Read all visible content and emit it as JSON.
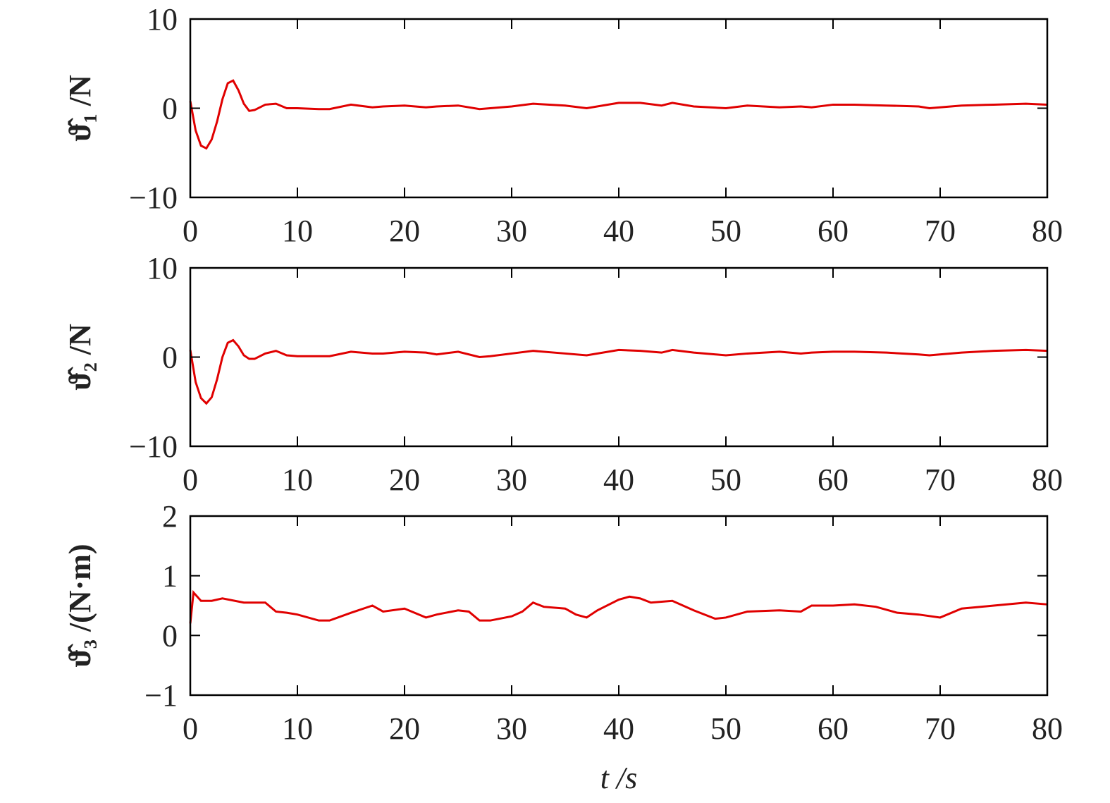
{
  "chart_data": [
    {
      "type": "line",
      "ylabel": "ϑ̂₁ /N",
      "x": [
        0,
        0.5,
        1,
        1.5,
        2,
        2.5,
        3,
        3.5,
        4,
        4.5,
        5,
        5.5,
        6,
        7,
        8,
        9,
        10,
        12,
        13,
        15,
        17,
        18,
        20,
        22,
        23,
        25,
        27,
        28,
        30,
        32,
        35,
        37,
        40,
        42,
        44,
        45,
        47,
        50,
        52,
        55,
        57,
        58,
        60,
        62,
        65,
        68,
        69,
        72,
        75,
        78,
        80
      ],
      "series": [
        {
          "color": "#e00000",
          "values": [
            0.8,
            -2.5,
            -4.2,
            -4.5,
            -3.5,
            -1.5,
            1,
            2.8,
            3.1,
            2,
            0.5,
            -0.3,
            -0.2,
            0.4,
            0.5,
            0,
            0,
            -0.1,
            -0.1,
            0.4,
            0.1,
            0.2,
            0.3,
            0.1,
            0.2,
            0.3,
            -0.1,
            0,
            0.2,
            0.5,
            0.3,
            0,
            0.6,
            0.6,
            0.3,
            0.6,
            0.2,
            0,
            0.3,
            0.1,
            0.2,
            0.1,
            0.4,
            0.4,
            0.3,
            0.2,
            0,
            0.3,
            0.4,
            0.5,
            0.4
          ]
        }
      ],
      "xlim": [
        0,
        80
      ],
      "xticks": [
        0,
        10,
        20,
        30,
        40,
        50,
        60,
        70,
        80
      ],
      "ylim": [
        -10,
        10
      ],
      "yticks": [
        {
          "value": -10,
          "label": "−10"
        },
        0,
        10
      ]
    },
    {
      "type": "line",
      "ylabel": "ϑ̂₂ /N",
      "x": [
        0,
        0.5,
        1,
        1.5,
        2,
        2.5,
        3,
        3.5,
        4,
        4.5,
        5,
        5.5,
        6,
        7,
        8,
        9,
        10,
        12,
        13,
        15,
        17,
        18,
        20,
        22,
        23,
        25,
        27,
        28,
        30,
        32,
        35,
        37,
        40,
        42,
        44,
        45,
        47,
        50,
        52,
        55,
        57,
        58,
        60,
        62,
        65,
        68,
        69,
        72,
        75,
        78,
        80
      ],
      "series": [
        {
          "color": "#e00000",
          "values": [
            0.8,
            -2.8,
            -4.6,
            -5.2,
            -4.5,
            -2.5,
            0,
            1.6,
            1.9,
            1.2,
            0.2,
            -0.2,
            -0.2,
            0.4,
            0.7,
            0.2,
            0.1,
            0.1,
            0.1,
            0.6,
            0.4,
            0.4,
            0.6,
            0.5,
            0.3,
            0.6,
            0,
            0.1,
            0.4,
            0.7,
            0.4,
            0.2,
            0.8,
            0.7,
            0.5,
            0.8,
            0.5,
            0.2,
            0.4,
            0.6,
            0.4,
            0.5,
            0.6,
            0.6,
            0.5,
            0.3,
            0.2,
            0.5,
            0.7,
            0.8,
            0.7
          ]
        }
      ],
      "xlim": [
        0,
        80
      ],
      "xticks": [
        0,
        10,
        20,
        30,
        40,
        50,
        60,
        70,
        80
      ],
      "ylim": [
        -10,
        10
      ],
      "yticks": [
        {
          "value": -10,
          "label": "−10"
        },
        0,
        10
      ]
    },
    {
      "type": "line",
      "ylabel": "ϑ̂₃ /(N·m)",
      "xlabel": "t /s",
      "x": [
        0,
        0.3,
        1,
        2,
        3,
        5,
        7,
        8,
        9,
        10,
        12,
        13,
        15,
        17,
        18,
        20,
        22,
        23,
        25,
        26,
        27,
        28,
        30,
        31,
        32,
        33,
        35,
        36,
        37,
        38,
        40,
        41,
        42,
        43,
        45,
        47,
        49,
        50,
        52,
        55,
        57,
        58,
        60,
        62,
        64,
        66,
        68,
        70,
        72,
        75,
        78,
        80
      ],
      "series": [
        {
          "color": "#e00000",
          "values": [
            0.2,
            0.72,
            0.58,
            0.58,
            0.62,
            0.55,
            0.55,
            0.4,
            0.38,
            0.35,
            0.25,
            0.25,
            0.38,
            0.5,
            0.4,
            0.45,
            0.3,
            0.35,
            0.42,
            0.4,
            0.25,
            0.25,
            0.32,
            0.4,
            0.55,
            0.48,
            0.45,
            0.35,
            0.3,
            0.42,
            0.6,
            0.65,
            0.62,
            0.55,
            0.58,
            0.42,
            0.28,
            0.3,
            0.4,
            0.42,
            0.4,
            0.5,
            0.5,
            0.52,
            0.48,
            0.38,
            0.35,
            0.3,
            0.45,
            0.5,
            0.55,
            0.52
          ]
        }
      ],
      "xlim": [
        0,
        80
      ],
      "xticks": [
        0,
        10,
        20,
        30,
        40,
        50,
        60,
        70,
        80
      ],
      "ylim": [
        -1,
        2
      ],
      "yticks": [
        {
          "value": -1,
          "label": "−1"
        },
        0,
        1,
        2
      ]
    }
  ]
}
